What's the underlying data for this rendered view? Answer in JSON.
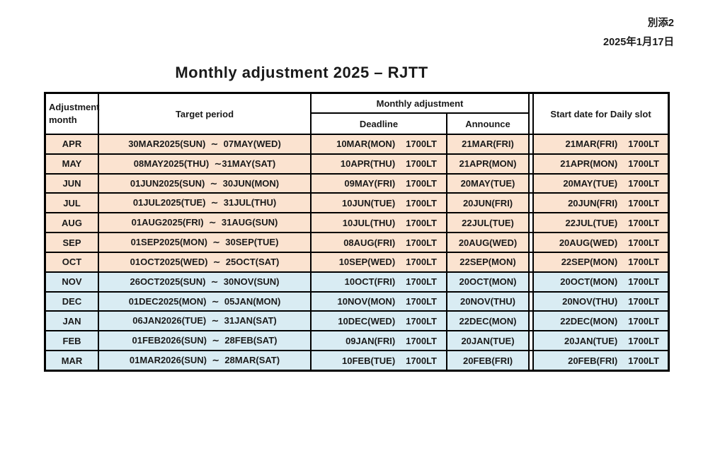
{
  "note": {
    "line1": "別添2",
    "line2": "2025年1月17日"
  },
  "title": "Monthly adjustment 2025 – RJTT",
  "colors": {
    "band_peach": "#fbe3d0",
    "band_blue": "#d9ecf3",
    "border": "#000000"
  },
  "table": {
    "headers": {
      "adjustment_month": "Adjustment\nmonth",
      "target_period": "Target period",
      "monthly_adjustment": "Monthly adjustment",
      "deadline": "Deadline",
      "announce": "Announce",
      "start_date": "Start date for Daily slot"
    },
    "rows": [
      {
        "month": "APR",
        "target_period": "30MAR2025(SUN)  ∼  07MAY(WED)",
        "deadline_date": "10MAR(MON)",
        "deadline_time": "1700LT",
        "announce": "21MAR(FRI)",
        "start_date": "21MAR(FRI)",
        "start_time": "1700LT",
        "band": "band_peach"
      },
      {
        "month": "MAY",
        "target_period": "08MAY2025(THU)  ∼31MAY(SAT)",
        "deadline_date": "10APR(THU)",
        "deadline_time": "1700LT",
        "announce": "21APR(MON)",
        "start_date": "21APR(MON)",
        "start_time": "1700LT",
        "band": "band_peach"
      },
      {
        "month": "JUN",
        "target_period": "01JUN2025(SUN)  ∼  30JUN(MON)",
        "deadline_date": "09MAY(FRI)",
        "deadline_time": "1700LT",
        "announce": "20MAY(TUE)",
        "start_date": "20MAY(TUE)",
        "start_time": "1700LT",
        "band": "band_peach"
      },
      {
        "month": "JUL",
        "target_period": "01JUL2025(TUE)  ∼  31JUL(THU)",
        "deadline_date": "10JUN(TUE)",
        "deadline_time": "1700LT",
        "announce": "20JUN(FRI)",
        "start_date": "20JUN(FRI)",
        "start_time": "1700LT",
        "band": "band_peach"
      },
      {
        "month": "AUG",
        "target_period": "01AUG2025(FRI)  ∼  31AUG(SUN)",
        "deadline_date": "10JUL(THU)",
        "deadline_time": "1700LT",
        "announce": "22JUL(TUE)",
        "start_date": "22JUL(TUE)",
        "start_time": "1700LT",
        "band": "band_peach"
      },
      {
        "month": "SEP",
        "target_period": "01SEP2025(MON)  ∼  30SEP(TUE)",
        "deadline_date": "08AUG(FRI)",
        "deadline_time": "1700LT",
        "announce": "20AUG(WED)",
        "start_date": "20AUG(WED)",
        "start_time": "1700LT",
        "band": "band_peach"
      },
      {
        "month": "OCT",
        "target_period": "01OCT2025(WED)  ∼  25OCT(SAT)",
        "deadline_date": "10SEP(WED)",
        "deadline_time": "1700LT",
        "announce": "22SEP(MON)",
        "start_date": "22SEP(MON)",
        "start_time": "1700LT",
        "band": "band_peach"
      },
      {
        "month": "NOV",
        "target_period": "26OCT2025(SUN)  ∼  30NOV(SUN)",
        "deadline_date": "10OCT(FRI)",
        "deadline_time": "1700LT",
        "announce": "20OCT(MON)",
        "start_date": "20OCT(MON)",
        "start_time": "1700LT",
        "band": "band_blue"
      },
      {
        "month": "DEC",
        "target_period": "01DEC2025(MON)  ∼  05JAN(MON)",
        "deadline_date": "10NOV(MON)",
        "deadline_time": "1700LT",
        "announce": "20NOV(THU)",
        "start_date": "20NOV(THU)",
        "start_time": "1700LT",
        "band": "band_blue"
      },
      {
        "month": "JAN",
        "target_period": "06JAN2026(TUE)  ∼  31JAN(SAT)",
        "deadline_date": "10DEC(WED)",
        "deadline_time": "1700LT",
        "announce": "22DEC(MON)",
        "start_date": "22DEC(MON)",
        "start_time": "1700LT",
        "band": "band_blue"
      },
      {
        "month": "FEB",
        "target_period": "01FEB2026(SUN)  ∼  28FEB(SAT)",
        "deadline_date": "09JAN(FRI)",
        "deadline_time": "1700LT",
        "announce": "20JAN(TUE)",
        "start_date": "20JAN(TUE)",
        "start_time": "1700LT",
        "band": "band_blue"
      },
      {
        "month": "MAR",
        "target_period": "01MAR2026(SUN)  ∼  28MAR(SAT)",
        "deadline_date": "10FEB(TUE)",
        "deadline_time": "1700LT",
        "announce": "20FEB(FRI)",
        "start_date": "20FEB(FRI)",
        "start_time": "1700LT",
        "band": "band_blue"
      }
    ]
  }
}
